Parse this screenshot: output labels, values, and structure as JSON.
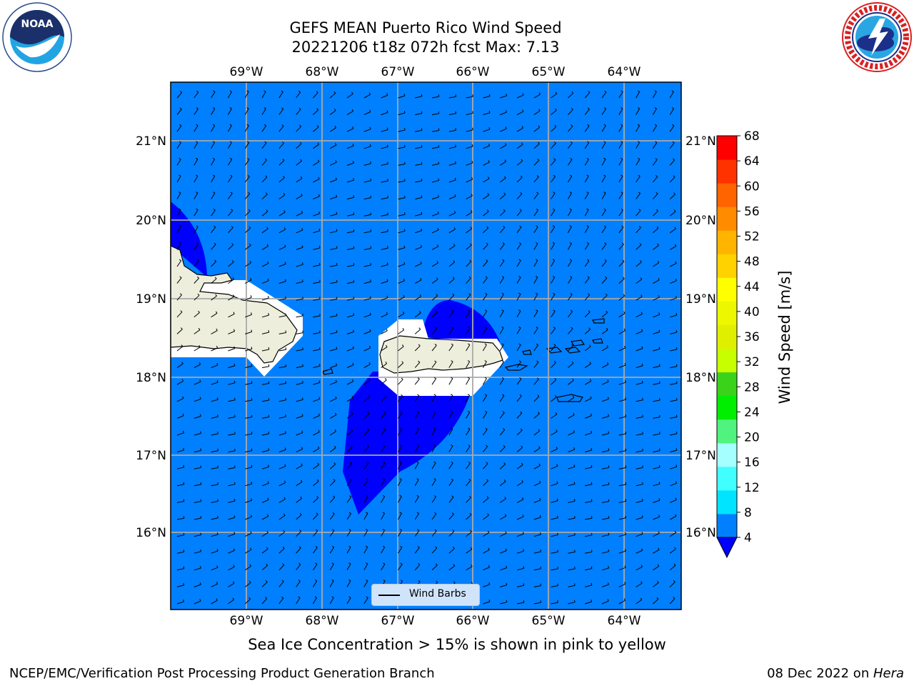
{
  "title_line1": "GEFS MEAN Puerto Rico Wind Speed",
  "title_line2": "20221206 t18z 072h fcst   Max: 7.13",
  "logos": {
    "left": "noaa-logo",
    "right": "nws-logo"
  },
  "map": {
    "lon_ticks": [
      "69°W",
      "68°W",
      "67°W",
      "66°W",
      "65°W",
      "64°W"
    ],
    "lat_ticks": [
      "21°N",
      "20°N",
      "19°N",
      "18°N",
      "17°N",
      "16°N"
    ],
    "ocean_color": "#0080ff",
    "calm_color": "#0000ff",
    "land_color": "#eeeedd",
    "grid": true
  },
  "legend": {
    "label": "Wind Barbs"
  },
  "colorbar": {
    "label": "Wind Speed [m/s]",
    "ticks": [
      "68",
      "64",
      "60",
      "56",
      "52",
      "48",
      "44",
      "40",
      "36",
      "32",
      "28",
      "24",
      "20",
      "16",
      "12",
      "8",
      "4"
    ],
    "colors": [
      "#0080ff",
      "#00e4ff",
      "#42ffff",
      "#a5ffff",
      "#50f37e",
      "#00ee00",
      "#3bd31a",
      "#c8ff00",
      "#e0ef00",
      "#ecf700",
      "#ffff00",
      "#ffd200",
      "#ffb400",
      "#ff8c00",
      "#ff6400",
      "#ff3200",
      "#ff0000"
    ],
    "under_color": "#0000ff",
    "range": [
      4,
      68
    ]
  },
  "note": "Sea Ice Concentration > 15% is shown in pink to yellow",
  "footer_left": "NCEP/EMC/Verification Post Processing Product Generation Branch",
  "footer_date": "08 Dec 2022 on ",
  "footer_machine": "Hera"
}
